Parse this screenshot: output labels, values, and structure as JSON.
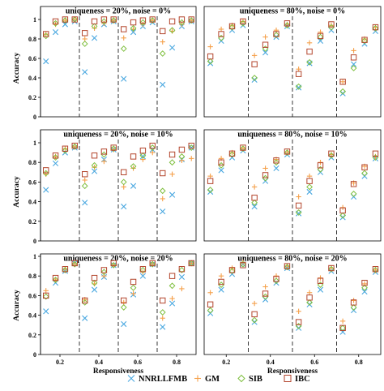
{
  "colors": {
    "NNRLLFMB": "#4aa8e0",
    "GM": "#f5a04a",
    "SIB": "#7fbf3f",
    "IBC": "#b3452c"
  },
  "legend": {
    "items": [
      {
        "name": "NNRLLFMB",
        "marker": "x"
      },
      {
        "name": "GM",
        "marker": "plus"
      },
      {
        "name": "SIB",
        "marker": "diamond"
      },
      {
        "name": "IBC",
        "marker": "square"
      }
    ]
  },
  "chart_data": [
    {
      "type": "scatter",
      "title": "uniqueness = 20%, noise = 0%",
      "xlabel": "",
      "ylabel": "Accuracy",
      "yticks": [
        "0",
        "0.2",
        "0.4",
        "0.6",
        "0.8",
        "1"
      ],
      "xticks": [],
      "ylim": [
        0,
        1
      ],
      "grid": false,
      "groups": [
        "0.2",
        "0.4",
        "0.6",
        "0.8"
      ],
      "series": [
        {
          "name": "NNRLLFMB",
          "values": [
            [
              0.57,
              0.87,
              0.95,
              0.98
            ],
            [
              0.46,
              0.81,
              0.95,
              0.98
            ],
            [
              0.39,
              0.87,
              0.93,
              0.97
            ],
            [
              0.33,
              0.71,
              0.93,
              0.98
            ]
          ]
        },
        {
          "name": "GM",
          "values": [
            [
              0.85,
              0.95,
              0.99,
              1.0
            ],
            [
              0.8,
              0.91,
              0.96,
              0.99
            ],
            [
              0.81,
              0.9,
              0.95,
              0.99
            ],
            [
              0.77,
              0.88,
              0.95,
              0.99
            ]
          ]
        },
        {
          "name": "SIB",
          "values": [
            [
              0.83,
              0.96,
              0.99,
              1.0
            ],
            [
              0.75,
              0.93,
              0.98,
              0.99
            ],
            [
              0.7,
              0.91,
              0.97,
              0.99
            ],
            [
              0.65,
              0.89,
              0.97,
              0.99
            ]
          ]
        },
        {
          "name": "IBC",
          "values": [
            [
              0.85,
              0.98,
              1.0,
              1.0
            ],
            [
              0.86,
              0.98,
              1.0,
              1.0
            ],
            [
              0.9,
              0.97,
              0.99,
              1.0
            ],
            [
              0.88,
              0.98,
              1.0,
              1.0
            ]
          ]
        }
      ]
    },
    {
      "type": "scatter",
      "title": "uniqueness = 80%, noise = 0%",
      "xlabel": "",
      "ylabel": "",
      "yticks": [],
      "xticks": [],
      "ylim": [
        0,
        1
      ],
      "grid": false,
      "groups": [
        "0.2",
        "0.4",
        "0.6",
        "0.8"
      ],
      "series": [
        {
          "name": "NNRLLFMB",
          "values": [
            [
              0.55,
              0.78,
              0.89,
              0.94
            ],
            [
              0.38,
              0.66,
              0.82,
              0.93
            ],
            [
              0.3,
              0.55,
              0.78,
              0.89
            ],
            [
              0.24,
              0.54,
              0.75,
              0.88
            ]
          ]
        },
        {
          "name": "GM",
          "values": [
            [
              0.72,
              0.9,
              0.94,
              0.98
            ],
            [
              0.63,
              0.82,
              0.89,
              0.95
            ],
            [
              0.49,
              0.76,
              0.87,
              0.94
            ],
            [
              0.36,
              0.68,
              0.8,
              0.92
            ]
          ]
        },
        {
          "name": "SIB",
          "values": [
            [
              0.57,
              0.81,
              0.92,
              0.96
            ],
            [
              0.4,
              0.7,
              0.84,
              0.94
            ],
            [
              0.31,
              0.56,
              0.82,
              0.92
            ],
            [
              0.26,
              0.5,
              0.78,
              0.91
            ]
          ]
        },
        {
          "name": "IBC",
          "values": [
            [
              0.62,
              0.85,
              0.93,
              0.98
            ],
            [
              0.54,
              0.74,
              0.85,
              0.96
            ],
            [
              0.44,
              0.67,
              0.83,
              0.95
            ],
            [
              0.36,
              0.61,
              0.79,
              0.92
            ]
          ]
        }
      ]
    },
    {
      "type": "scatter",
      "title": "uniqueness = 20%, noise = 10%",
      "xlabel": "",
      "ylabel": "Accuracy",
      "yticks": [
        "0",
        "0.2",
        "0.4",
        "0.6",
        "0.8",
        "1"
      ],
      "xticks": [],
      "ylim": [
        0,
        1
      ],
      "grid": false,
      "groups": [
        "0.2",
        "0.4",
        "0.6",
        "0.8"
      ],
      "series": [
        {
          "name": "NNRLLFMB",
          "values": [
            [
              0.52,
              0.79,
              0.9,
              0.95
            ],
            [
              0.39,
              0.71,
              0.83,
              0.93
            ],
            [
              0.35,
              0.56,
              0.86,
              0.93
            ],
            [
              0.3,
              0.47,
              0.83,
              0.95
            ]
          ]
        },
        {
          "name": "GM",
          "values": [
            [
              0.68,
              0.86,
              0.94,
              0.96
            ],
            [
              0.62,
              0.75,
              0.81,
              0.93
            ],
            [
              0.55,
              0.74,
              0.83,
              0.9
            ],
            [
              0.43,
              0.68,
              0.82,
              0.84
            ]
          ]
        },
        {
          "name": "SIB",
          "values": [
            [
              0.69,
              0.85,
              0.92,
              0.96
            ],
            [
              0.56,
              0.77,
              0.88,
              0.94
            ],
            [
              0.6,
              0.76,
              0.87,
              0.95
            ],
            [
              0.51,
              0.8,
              0.86,
              0.95
            ]
          ]
        },
        {
          "name": "IBC",
          "values": [
            [
              0.72,
              0.87,
              0.94,
              0.97
            ],
            [
              0.68,
              0.87,
              0.91,
              0.95
            ],
            [
              0.7,
              0.86,
              0.92,
              0.97
            ],
            [
              0.69,
              0.88,
              0.93,
              0.97
            ]
          ]
        }
      ]
    },
    {
      "type": "scatter",
      "title": "uniqueness = 80%, noise = 10%",
      "xlabel": "",
      "ylabel": "",
      "yticks": [],
      "xticks": [],
      "ylim": [
        0,
        1
      ],
      "grid": false,
      "groups": [
        "0.2",
        "0.4",
        "0.6",
        "0.8"
      ],
      "series": [
        {
          "name": "NNRLLFMB",
          "values": [
            [
              0.5,
              0.72,
              0.85,
              0.92
            ],
            [
              0.35,
              0.61,
              0.74,
              0.88
            ],
            [
              0.28,
              0.5,
              0.7,
              0.85
            ],
            [
              0.24,
              0.45,
              0.66,
              0.84
            ]
          ]
        },
        {
          "name": "GM",
          "values": [
            [
              0.66,
              0.84,
              0.9,
              0.94
            ],
            [
              0.55,
              0.74,
              0.83,
              0.9
            ],
            [
              0.45,
              0.66,
              0.8,
              0.88
            ],
            [
              0.34,
              0.59,
              0.76,
              0.86
            ]
          ]
        },
        {
          "name": "SIB",
          "values": [
            [
              0.52,
              0.77,
              0.88,
              0.94
            ],
            [
              0.39,
              0.64,
              0.8,
              0.9
            ],
            [
              0.29,
              0.55,
              0.73,
              0.87
            ],
            [
              0.26,
              0.48,
              0.69,
              0.85
            ]
          ]
        },
        {
          "name": "IBC",
          "values": [
            [
              0.61,
              0.8,
              0.89,
              0.95
            ],
            [
              0.44,
              0.67,
              0.82,
              0.91
            ],
            [
              0.36,
              0.61,
              0.77,
              0.89
            ],
            [
              0.31,
              0.58,
              0.75,
              0.89
            ]
          ]
        }
      ]
    },
    {
      "type": "scatter",
      "title": "uniqueness = 20%, noise = 20%",
      "xlabel": "Responsiveness",
      "ylabel": "Accuracy",
      "yticks": [
        "0",
        "0.2",
        "0.4",
        "0.6",
        "0.8",
        "1"
      ],
      "xticks": [
        "0.2",
        "0.4",
        "0.6",
        "0.8"
      ],
      "ylim": [
        0,
        1
      ],
      "grid": false,
      "groups": [
        "0.2",
        "0.4",
        "0.6",
        "0.8"
      ],
      "series": [
        {
          "name": "NNRLLFMB",
          "values": [
            [
              0.44,
              0.73,
              0.85,
              0.93
            ],
            [
              0.37,
              0.66,
              0.79,
              0.91
            ],
            [
              0.31,
              0.61,
              0.8,
              0.92
            ],
            [
              0.28,
              0.52,
              0.79,
              0.93
            ]
          ]
        },
        {
          "name": "GM",
          "values": [
            [
              0.65,
              0.76,
              0.87,
              0.92
            ],
            [
              0.56,
              0.72,
              0.8,
              0.91
            ],
            [
              0.53,
              0.62,
              0.84,
              0.92
            ],
            [
              0.37,
              0.57,
              0.67,
              0.93
            ]
          ]
        },
        {
          "name": "SIB",
          "values": [
            [
              0.59,
              0.76,
              0.86,
              0.92
            ],
            [
              0.53,
              0.73,
              0.84,
              0.91
            ],
            [
              0.48,
              0.68,
              0.86,
              0.92
            ],
            [
              0.43,
              0.7,
              0.86,
              0.93
            ]
          ]
        },
        {
          "name": "IBC",
          "values": [
            [
              0.6,
              0.78,
              0.87,
              0.93
            ],
            [
              0.55,
              0.78,
              0.86,
              0.93
            ],
            [
              0.55,
              0.74,
              0.87,
              0.93
            ],
            [
              0.55,
              0.8,
              0.87,
              0.93
            ]
          ]
        }
      ]
    },
    {
      "type": "scatter",
      "title": "uniqueness = 80%, noise = 20%",
      "xlabel": "Responsiveness",
      "ylabel": "",
      "yticks": [],
      "xticks": [
        "0.2",
        "0.4",
        "0.6",
        "0.8"
      ],
      "ylim": [
        0,
        1
      ],
      "grid": false,
      "groups": [
        "0.2",
        "0.4",
        "0.6",
        "0.8"
      ],
      "series": [
        {
          "name": "NNRLLFMB",
          "values": [
            [
              0.42,
              0.66,
              0.82,
              0.92
            ],
            [
              0.33,
              0.56,
              0.73,
              0.88
            ],
            [
              0.27,
              0.51,
              0.66,
              0.85
            ],
            [
              0.23,
              0.45,
              0.64,
              0.84
            ]
          ]
        },
        {
          "name": "GM",
          "values": [
            [
              0.63,
              0.8,
              0.88,
              0.94
            ],
            [
              0.52,
              0.69,
              0.8,
              0.9
            ],
            [
              0.44,
              0.63,
              0.78,
              0.88
            ],
            [
              0.34,
              0.55,
              0.72,
              0.86
            ]
          ]
        },
        {
          "name": "SIB",
          "values": [
            [
              0.45,
              0.71,
              0.85,
              0.92
            ],
            [
              0.35,
              0.59,
              0.75,
              0.89
            ],
            [
              0.29,
              0.53,
              0.71,
              0.87
            ],
            [
              0.27,
              0.48,
              0.68,
              0.86
            ]
          ]
        },
        {
          "name": "IBC",
          "values": [
            [
              0.51,
              0.74,
              0.86,
              0.91
            ],
            [
              0.41,
              0.62,
              0.77,
              0.9
            ],
            [
              0.33,
              0.58,
              0.75,
              0.88
            ],
            [
              0.27,
              0.53,
              0.73,
              0.87
            ]
          ]
        }
      ]
    }
  ]
}
